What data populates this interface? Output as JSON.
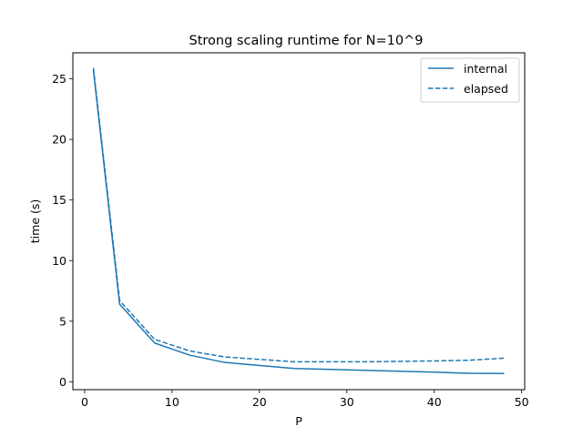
{
  "chart_data": {
    "type": "line",
    "title": "Strong scaling runtime for N=10^9",
    "xlabel": "P",
    "ylabel": "time (s)",
    "xlim": [
      -1.35,
      50.35
    ],
    "ylim": [
      -0.65,
      27.15
    ],
    "xticks": [
      0,
      10,
      20,
      30,
      40,
      50
    ],
    "yticks": [
      0,
      5,
      10,
      15,
      20,
      25
    ],
    "grid": false,
    "legend_position": "top-right",
    "x": [
      1,
      4,
      8,
      12,
      16,
      24,
      32,
      40,
      44,
      48
    ],
    "series": [
      {
        "name": "internal",
        "style": "solid",
        "color": "#1f77b4",
        "values": [
          25.7,
          6.4,
          3.2,
          2.2,
          1.6,
          1.1,
          0.95,
          0.8,
          0.7,
          0.68
        ]
      },
      {
        "name": "elapsed",
        "style": "dashed",
        "color": "#1f77b4",
        "values": [
          25.9,
          6.7,
          3.5,
          2.55,
          2.05,
          1.65,
          1.65,
          1.72,
          1.78,
          1.95
        ]
      }
    ]
  }
}
